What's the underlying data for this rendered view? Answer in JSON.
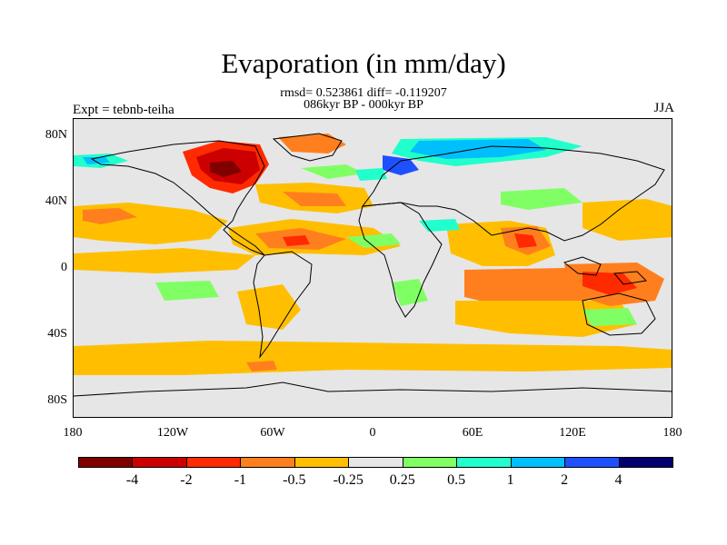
{
  "title": "Evaporation (in mm/day)",
  "stats_line1": "rmsd= 0.523861 diff= -0.119207",
  "stats_line2": "086kyr BP - 000kyr BP",
  "left_label": "Expt = tebnb-teiha",
  "right_label": "JJA",
  "lat_ticks": [
    "80N",
    "40N",
    "0",
    "40S",
    "80S"
  ],
  "lon_ticks": [
    "180",
    "120W",
    "60W",
    "0",
    "60E",
    "120E",
    "180"
  ],
  "colorbar": {
    "colors": [
      "#800000",
      "#cc0000",
      "#ff2a00",
      "#ff7f1e",
      "#ffbf00",
      "#e6e6e6",
      "#80ff64",
      "#20ffcc",
      "#00bfff",
      "#1e50ff",
      "#00006e"
    ],
    "labels": [
      "-4",
      "-2",
      "-1",
      "-0.5",
      "-0.25",
      "0.25",
      "0.5",
      "1",
      "2",
      "4"
    ]
  }
}
